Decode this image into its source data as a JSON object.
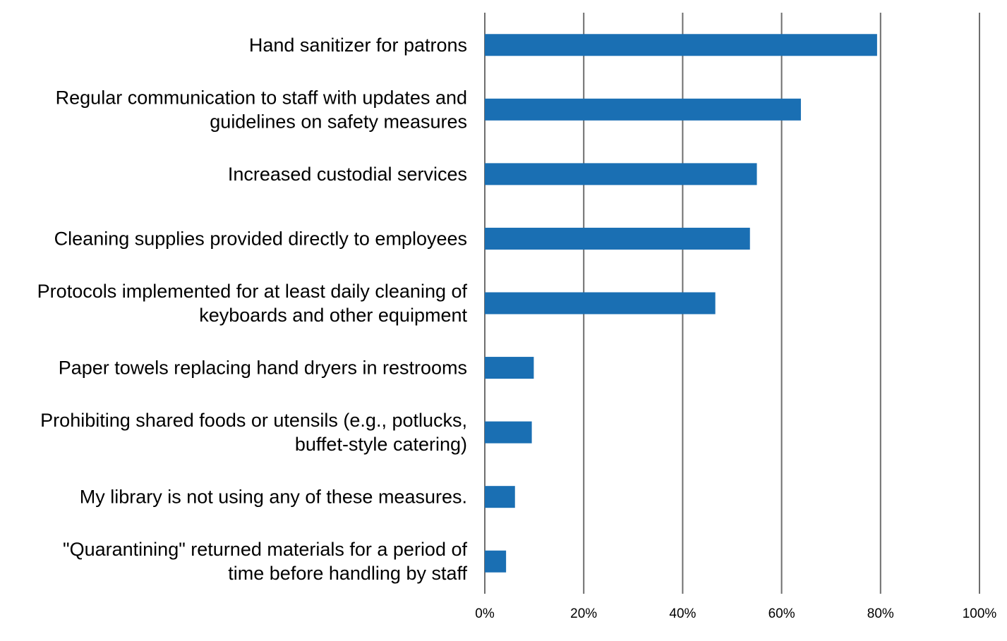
{
  "chart_data": {
    "type": "bar",
    "orientation": "horizontal",
    "title": "",
    "xlabel": "",
    "ylabel": "",
    "xlim": [
      0,
      100
    ],
    "x_ticks": [
      "0%",
      "20%",
      "40%",
      "60%",
      "80%",
      "100%"
    ],
    "grid": "vertical",
    "legend": "none",
    "bar_color": "#1a6fb3",
    "categories": [
      [
        "Hand sanitizer for patrons"
      ],
      [
        "Regular communication to staff with updates and",
        "guidelines on safety measures"
      ],
      [
        "Increased custodial services"
      ],
      [
        "Cleaning supplies provided directly to employees"
      ],
      [
        "Protocols implemented for at least daily cleaning of",
        "keyboards and other equipment"
      ],
      [
        "Paper towels replacing hand dryers in restrooms"
      ],
      [
        "Prohibiting shared foods or utensils (e.g., potlucks,",
        "buffet-style catering)"
      ],
      [
        "My library is not using any of these measures."
      ],
      [
        "\"Quarantining\" returned materials for a period of",
        "time before handling by staff"
      ]
    ],
    "values": [
      79.3,
      63.9,
      55.0,
      53.6,
      46.6,
      9.9,
      9.5,
      6.1,
      4.3
    ]
  }
}
